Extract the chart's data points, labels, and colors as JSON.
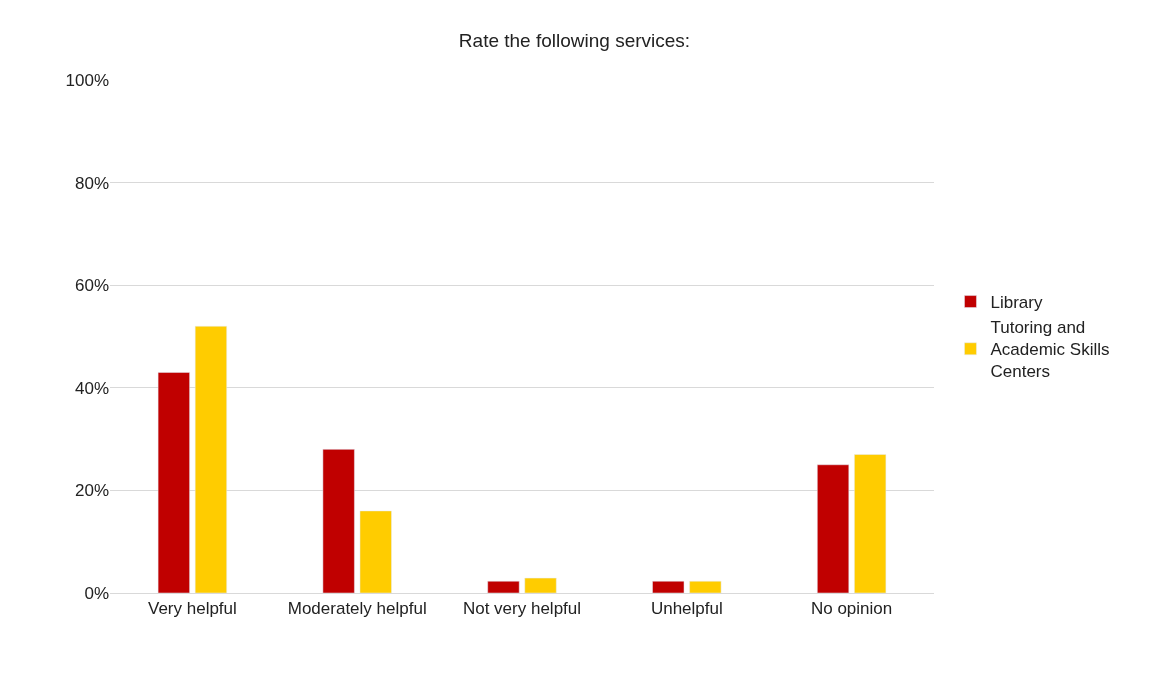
{
  "chart_data": {
    "type": "bar",
    "title": "Rate the following services:",
    "categories": [
      "Very helpful",
      "Moderately helpful",
      "Not very helpful",
      "Unhelpful",
      "No opinion"
    ],
    "series": [
      {
        "name": "Library",
        "color": "#c00000",
        "values": [
          43,
          28,
          2.3,
          2.3,
          25
        ]
      },
      {
        "name": "Tutoring and Academic Skills Centers",
        "color": "#ffcc00",
        "values": [
          52,
          16,
          2.9,
          2.3,
          27
        ]
      }
    ],
    "ylim": [
      0,
      100
    ],
    "yticks": [
      {
        "value": 0,
        "label": "0%"
      },
      {
        "value": 20,
        "label": "20%"
      },
      {
        "value": 40,
        "label": "40%"
      },
      {
        "value": 60,
        "label": "60%"
      },
      {
        "value": 80,
        "label": "80%"
      },
      {
        "value": 100,
        "label": "100%"
      }
    ],
    "grid": "y",
    "legend": "right"
  }
}
